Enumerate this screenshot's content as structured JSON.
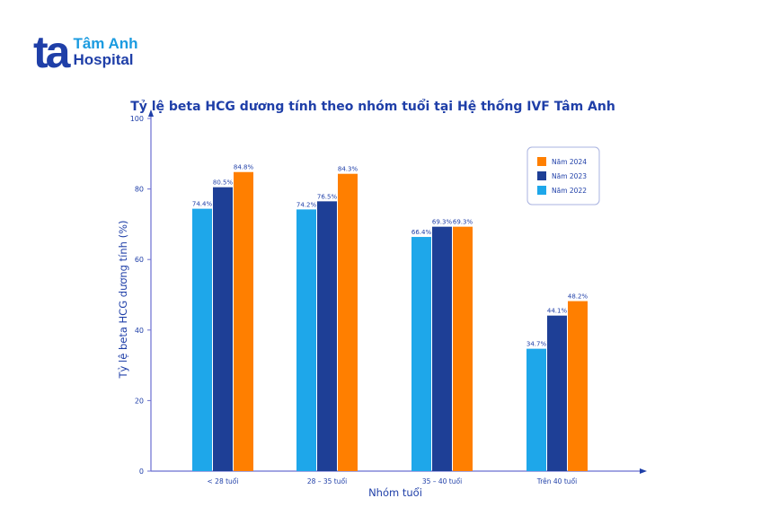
{
  "brand": {
    "mark": "ta",
    "line1": "Tâm Anh",
    "line2": "Hospital",
    "color": "#1f3fa8",
    "accent": "#1b9be0"
  },
  "chart_data": {
    "type": "bar",
    "title": "Tỷ lệ beta HCG dương tính theo nhóm tuổi tại Hệ thống IVF Tâm Anh",
    "xlabel": "Nhóm tuổi",
    "ylabel": "Tỷ lệ beta HCG dương tính (%)",
    "ylim": [
      0,
      100
    ],
    "yticks": [
      0,
      20,
      40,
      60,
      80,
      100
    ],
    "grid": false,
    "legend_position": "top-right",
    "categories": [
      "< 28 tuổi",
      "28 – 35 tuổi",
      "35 – 40 tuổi",
      "Trên 40 tuổi"
    ],
    "series": [
      {
        "name": "Năm 2022",
        "color": "#1ea7ea",
        "values": [
          74.4,
          74.2,
          66.4,
          34.7
        ],
        "labels": [
          "74.4%",
          "74.2%",
          "66.4%",
          "34.7%"
        ]
      },
      {
        "name": "Năm 2023",
        "color": "#1e3f96",
        "values": [
          80.5,
          76.5,
          69.3,
          44.1
        ],
        "labels": [
          "80.5%",
          "76.5%",
          "69.3%",
          "44.1%"
        ]
      },
      {
        "name": "Năm 2024",
        "color": "#ff7f00",
        "values": [
          84.8,
          84.3,
          69.3,
          48.2
        ],
        "labels": [
          "84.8%",
          "84.3%",
          "69.3%",
          "48.2%"
        ]
      }
    ],
    "legend_order": [
      "Năm 2024",
      "Năm 2023",
      "Năm 2022"
    ]
  }
}
